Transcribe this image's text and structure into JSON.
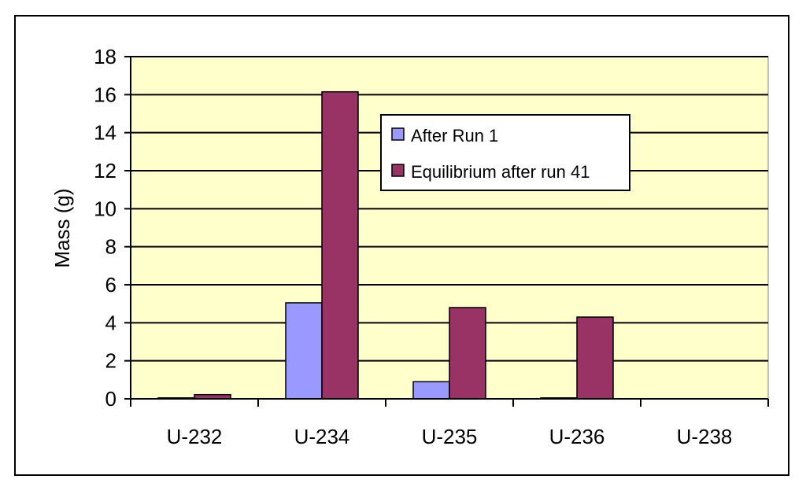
{
  "chart_data": {
    "type": "bar",
    "categories": [
      "U-232",
      "U-234",
      "U-235",
      "U-236",
      "U-238"
    ],
    "series": [
      {
        "name": "After Run 1",
        "color": "#9999ff",
        "values": [
          0.05,
          5.05,
          0.9,
          0.05,
          0
        ]
      },
      {
        "name": "Equilibrium after run 41",
        "color": "#993366",
        "values": [
          0.22,
          16.15,
          4.8,
          4.3,
          0
        ]
      }
    ],
    "ylabel": "Mass (g)",
    "xlabel": "",
    "title": "",
    "ylim": [
      0,
      18
    ],
    "yticks": [
      0,
      2,
      4,
      6,
      8,
      10,
      12,
      14,
      16,
      18
    ],
    "grid": true,
    "legend_position": "upper-right-inside",
    "plot_background": "#ffffcc"
  }
}
